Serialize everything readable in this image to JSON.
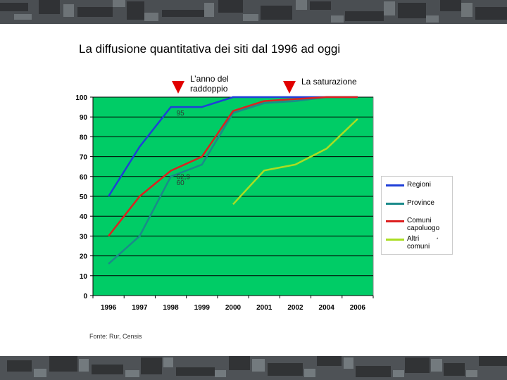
{
  "slide": {
    "title": "La diffusione quantitativa dei siti dal 1996 ad oggi",
    "annotation_doubling": "L’anno del raddoppio",
    "annotation_saturation": "La saturazione",
    "source": "Fonte: Rur, Censis",
    "marker_color": "#e10000"
  },
  "chart_data": {
    "type": "line",
    "categories": [
      "1996",
      "1997",
      "1998",
      "1999",
      "2000",
      "2001",
      "2002",
      "2004",
      "2006"
    ],
    "ylim": [
      0,
      100
    ],
    "yticks": [
      "0",
      "10",
      "20",
      "30",
      "40",
      "50",
      "60",
      "70",
      "80",
      "90",
      "100"
    ],
    "plot_background": "#00cc66",
    "grid": true,
    "legend_position": "right",
    "series": [
      {
        "name": "Regioni",
        "color": "#1f3fd8",
        "values": [
          50,
          75,
          95,
          95,
          100,
          100,
          100,
          100,
          100
        ]
      },
      {
        "name": "Province",
        "color": "#1a8a8a",
        "values": [
          16,
          30,
          60,
          66,
          92,
          97,
          98,
          100,
          100
        ]
      },
      {
        "name": "Comuni capoluogo",
        "color": "#dd2020",
        "values": [
          30,
          50,
          62.9,
          70,
          93,
          98,
          99,
          100,
          100
        ]
      },
      {
        "name": "Altri comuni",
        "color": "#aadd22",
        "values": [
          null,
          null,
          null,
          null,
          46,
          63,
          66,
          74,
          89
        ]
      }
    ],
    "data_labels": [
      {
        "text": "95",
        "category": "1998",
        "value": 95
      },
      {
        "text": "62,9",
        "category": "1998",
        "value": 62.9
      },
      {
        "text": "60",
        "category": "1998",
        "value": 60
      }
    ],
    "legend_note": "*"
  }
}
